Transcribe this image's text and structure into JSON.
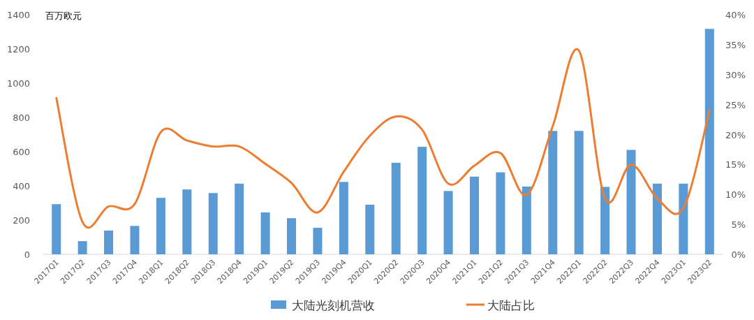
{
  "chart_data": {
    "type": "bar",
    "ylabel": "百万欧元",
    "categories": [
      "2017Q1",
      "2017Q2",
      "2017Q3",
      "2017Q4",
      "2018Q1",
      "2018Q2",
      "2018Q3",
      "2018Q4",
      "2019Q1",
      "2019Q2",
      "2019Q3",
      "2019Q4",
      "2020Q1",
      "2020Q2",
      "2020Q3",
      "2020Q4",
      "2021Q1",
      "2021Q2",
      "2021Q3",
      "2021Q4",
      "2022Q1",
      "2022Q2",
      "2022Q3",
      "2022Q4",
      "2023Q1",
      "2023Q2"
    ],
    "series": [
      {
        "name": "大陆光刻机营收",
        "color": "#5b9bd5",
        "values": [
          293,
          77,
          139,
          166,
          330,
          379,
          358,
          413,
          245,
          211,
          155,
          423,
          290,
          535,
          628,
          370,
          454,
          479,
          396,
          721,
          721,
          394,
          610,
          413,
          413,
          1317
        ]
      },
      {
        "name": "大陆占比",
        "type": "line",
        "axis": "y2",
        "color": "#ed7d31",
        "values": [
          26.1,
          5.4,
          8.0,
          8.4,
          20.4,
          19.0,
          18.0,
          18.0,
          15.1,
          11.9,
          7.0,
          13.8,
          19.8,
          23.0,
          20.8,
          11.8,
          14.8,
          16.9,
          9.9,
          21.4,
          34.0,
          9.3,
          15.0,
          9.3,
          7.7,
          24.0
        ]
      }
    ],
    "ylim": [
      0,
      1400
    ],
    "yticks": [
      0,
      200,
      400,
      600,
      800,
      1000,
      1200,
      1400
    ],
    "y2lim": [
      0,
      40
    ],
    "y2ticks": [
      {
        "value": 0,
        "label": "0%"
      },
      {
        "value": 5,
        "label": "5%"
      },
      {
        "value": 10,
        "label": "10%"
      },
      {
        "value": 15,
        "label": "15%"
      },
      {
        "value": 20,
        "label": "20%"
      },
      {
        "value": 25,
        "label": "25%"
      },
      {
        "value": 30,
        "label": "30%"
      },
      {
        "value": 35,
        "label": "35%"
      },
      {
        "value": 40,
        "label": "40%"
      }
    ],
    "grid": false,
    "legend": "bottom",
    "marker": "none",
    "line_style": "solid"
  }
}
